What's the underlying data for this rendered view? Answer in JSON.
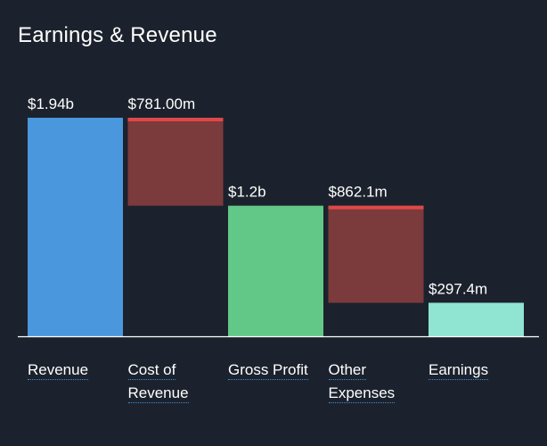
{
  "title": "Earnings & Revenue",
  "colors": {
    "background": "#1c222d",
    "revenue": "#4a97de",
    "expense": "#7b3a3c",
    "expense_cap": "#e04848",
    "gross_profit": "#62c887",
    "earnings": "#8fe4d2",
    "axis": "#ffffff",
    "label_underline": "#3b8bd6"
  },
  "chart_data": {
    "type": "waterfall",
    "title": "Earnings & Revenue",
    "unit": "USD",
    "ylim": [
      0,
      1.94
    ],
    "steps": [
      {
        "category": "Revenue",
        "lines": [
          "Revenue"
        ],
        "label": "$1.94b",
        "kind": "total",
        "start": 0,
        "end": 1.94,
        "color": "revenue"
      },
      {
        "category": "Cost of Revenue",
        "lines": [
          "Cost of",
          "Revenue"
        ],
        "label": "$781.00m",
        "kind": "decrease",
        "start": 1.94,
        "end": 1.159,
        "color": "expense"
      },
      {
        "category": "Gross Profit",
        "lines": [
          "Gross Profit"
        ],
        "label": "$1.2b",
        "kind": "total",
        "start": 0,
        "end": 1.159,
        "color": "gross_profit"
      },
      {
        "category": "Other Expenses",
        "lines": [
          "Other",
          "Expenses"
        ],
        "label": "$862.1m",
        "kind": "decrease",
        "start": 1.159,
        "end": 0.297,
        "color": "expense"
      },
      {
        "category": "Earnings",
        "lines": [
          "Earnings"
        ],
        "label": "$297.4m",
        "kind": "total",
        "start": 0,
        "end": 0.2974,
        "color": "earnings"
      }
    ]
  }
}
